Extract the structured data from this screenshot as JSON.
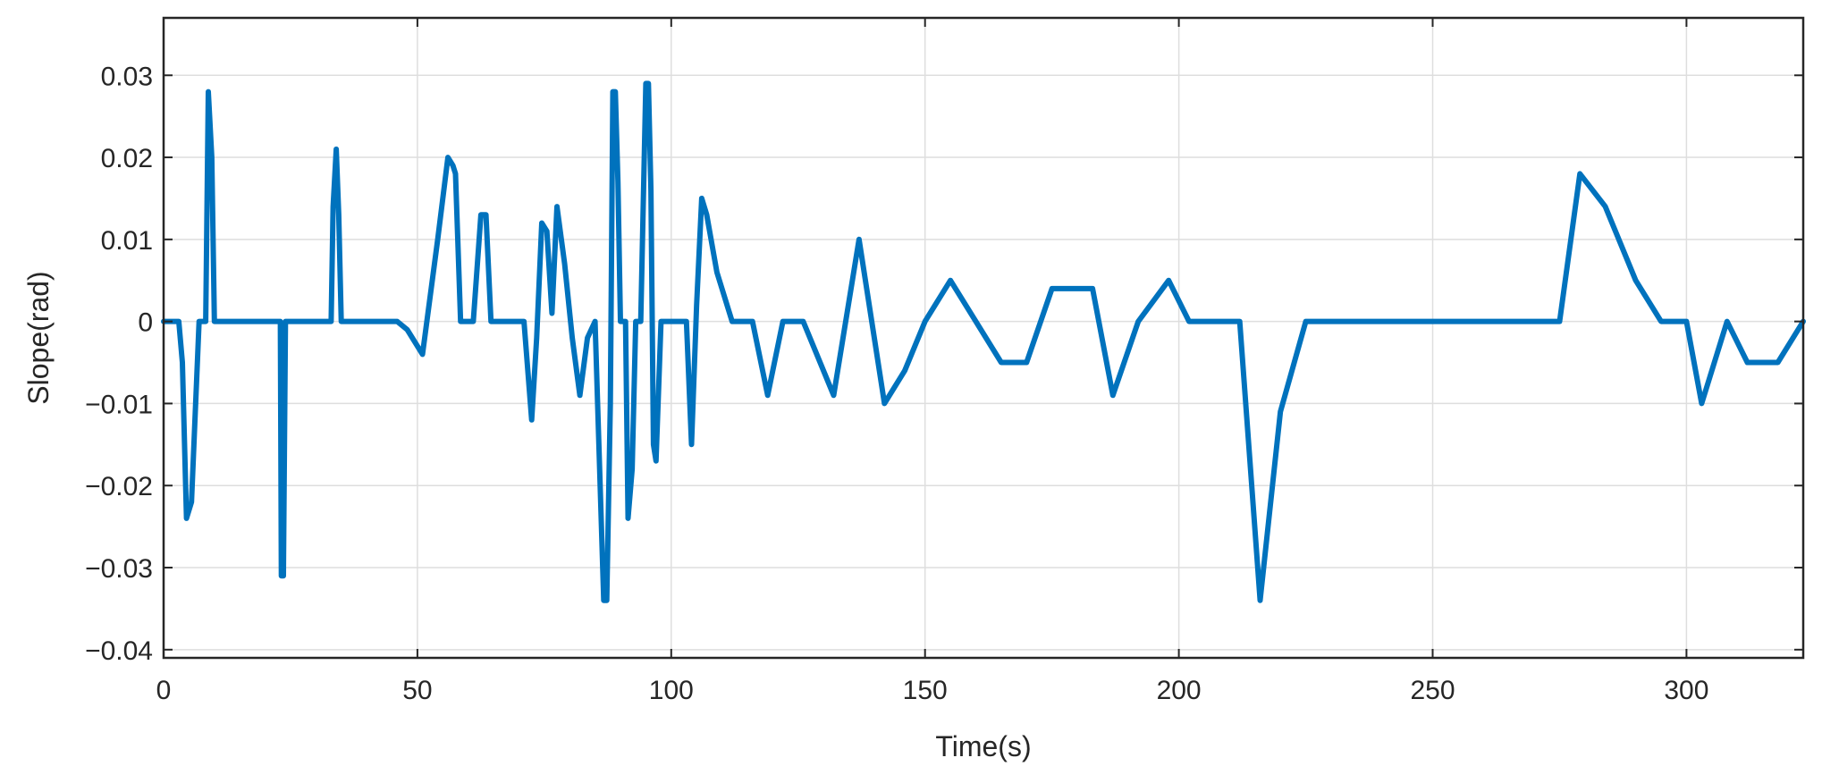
{
  "chart_data": {
    "type": "line",
    "title": "",
    "xlabel": "Time(s)",
    "ylabel": "Slope(rad)",
    "xlim": [
      0,
      323
    ],
    "ylim": [
      -0.041,
      0.037
    ],
    "xticks": [
      0,
      50,
      100,
      150,
      200,
      250,
      300
    ],
    "xtick_labels": [
      "0",
      "50",
      "100",
      "150",
      "200",
      "250",
      "300"
    ],
    "yticks": [
      -0.04,
      -0.03,
      -0.02,
      -0.01,
      0,
      0.01,
      0.02,
      0.03
    ],
    "ytick_labels": [
      "−0.04",
      "−0.03",
      "−0.02",
      "−0.01",
      "0",
      "0.01",
      "0.02",
      "0.03"
    ],
    "grid": true,
    "legend": "none",
    "colors": {
      "series": "#0072BD",
      "axis": "#262626",
      "grid": "#dedede"
    },
    "series": [
      {
        "x": [
          0,
          3,
          3.7,
          4.5,
          5.5,
          7,
          8.3,
          8.8,
          9.5,
          10,
          23,
          23.2,
          23.6,
          24,
          33,
          33.4,
          34,
          34.5,
          35,
          46,
          48,
          51,
          54,
          56,
          57,
          57.5,
          58.5,
          61,
          62.5,
          63.5,
          64.5,
          66,
          67,
          71,
          72.5,
          73.5,
          74.5,
          75.5,
          76.5,
          77.5,
          79,
          80.5,
          82,
          83.5,
          85,
          86,
          86.7,
          87.3,
          88,
          88.5,
          89,
          89.5,
          90,
          91,
          91.5,
          92.3,
          93,
          94,
          95,
          95.5,
          96,
          96.5,
          97,
          98,
          98.5,
          99,
          103,
          104,
          105,
          106,
          107,
          109,
          112,
          116,
          119,
          122,
          126,
          132,
          137,
          142,
          146,
          150,
          155,
          160,
          165,
          170,
          175,
          180,
          183,
          187,
          192,
          198,
          202,
          212,
          216,
          220,
          225,
          275,
          279,
          284,
          290,
          295,
          300,
          303,
          308,
          312,
          318,
          323
        ],
        "y": [
          0,
          0,
          -0.005,
          -0.024,
          -0.022,
          0,
          0,
          0.028,
          0.02,
          0,
          0,
          -0.031,
          -0.031,
          0,
          0,
          0.014,
          0.021,
          0.013,
          0,
          0,
          -0.001,
          -0.004,
          0.01,
          0.02,
          0.019,
          0.018,
          0,
          0,
          0.013,
          0.013,
          0,
          0,
          0,
          0,
          -0.012,
          -0.002,
          0.012,
          0.011,
          0.001,
          0.014,
          0.007,
          -0.002,
          -0.009,
          -0.002,
          0,
          -0.02,
          -0.034,
          -0.034,
          -0.01,
          0.028,
          0.028,
          0.017,
          0,
          0,
          -0.024,
          -0.018,
          0,
          0,
          0.029,
          0.029,
          0.016,
          -0.015,
          -0.017,
          0,
          0,
          0,
          0,
          -0.015,
          0.002,
          0.015,
          0.013,
          0.006,
          0,
          0,
          -0.009,
          0,
          0,
          -0.009,
          0.01,
          -0.01,
          -0.006,
          0,
          0.005,
          0,
          -0.005,
          -0.005,
          0.004,
          0.004,
          0.004,
          -0.009,
          0,
          0.005,
          0,
          0,
          -0.034,
          -0.011,
          0,
          0,
          0.018,
          0.014,
          0.005,
          0,
          0,
          -0.01,
          0,
          -0.005,
          -0.005,
          0
        ]
      }
    ]
  }
}
